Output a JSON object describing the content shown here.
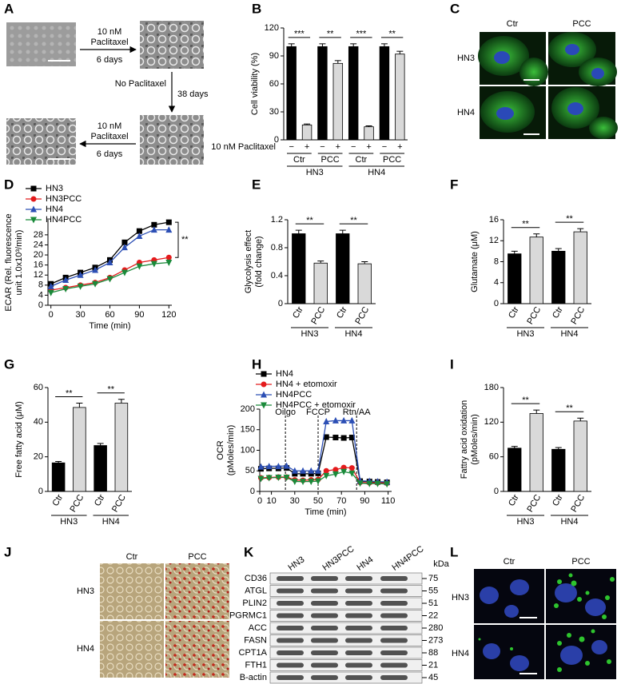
{
  "panel_letters": [
    "A",
    "B",
    "C",
    "D",
    "E",
    "F",
    "G",
    "H",
    "I",
    "J",
    "K",
    "L"
  ],
  "panel_a": {
    "top": [
      "10 nM",
      "Paclitaxel",
      "6 days"
    ],
    "middle": [
      "No Paclitaxel",
      "38 days"
    ],
    "bottom": [
      "10 nM",
      "Paclitaxel",
      "6 days"
    ]
  },
  "panel_c": {
    "columns": [
      "Ctr",
      "PCC"
    ],
    "rows": [
      "HN3",
      "HN4"
    ]
  },
  "panel_j": {
    "columns": [
      "Ctr",
      "PCC"
    ],
    "rows": [
      "HN3",
      "HN4"
    ]
  },
  "panel_l": {
    "columns": [
      "Ctr",
      "PCC"
    ],
    "rows": [
      "HN3",
      "HN4"
    ]
  },
  "panel_k": {
    "lanes": [
      "HN3",
      "HN3PCC",
      "HN4",
      "HN4PCC"
    ],
    "unit": "kDa",
    "proteins": [
      {
        "name": "CD36",
        "kda": 75
      },
      {
        "name": "ATGL",
        "kda": 55
      },
      {
        "name": "PLIN2",
        "kda": 51
      },
      {
        "name": "PGRMC1",
        "kda": 22
      },
      {
        "name": "ACC",
        "kda": 280
      },
      {
        "name": "FASN",
        "kda": 273
      },
      {
        "name": "CPT1A",
        "kda": 88
      },
      {
        "name": "FTH1",
        "kda": 21
      },
      {
        "name": "B-actin",
        "kda": 45
      }
    ]
  },
  "chart_data": [
    {
      "type": "bar",
      "ylabel": "Cell viability (%)",
      "row_label": "10 nM Paclitaxel",
      "categories": [
        "−",
        "+",
        "−",
        "+",
        "−",
        "+",
        "−",
        "+"
      ],
      "groups": [
        "Ctr",
        "PCC",
        "Ctr",
        "PCC"
      ],
      "supergroups": [
        "HN3",
        "HN4"
      ],
      "values": [
        100,
        16,
        100,
        82,
        100,
        14,
        100,
        92
      ],
      "errors": [
        3,
        1,
        3,
        3,
        3,
        1,
        3,
        3
      ],
      "colors": [
        "#000000",
        "#d9d9d9",
        "#000000",
        "#d9d9d9",
        "#000000",
        "#d9d9d9",
        "#000000",
        "#d9d9d9"
      ],
      "significance": [
        "***",
        "**",
        "***",
        "**"
      ],
      "ylim": [
        0,
        120
      ],
      "yticks": [
        0,
        30,
        60,
        90,
        120
      ]
    },
    {
      "type": "line",
      "ylabel": [
        "ECAR (Rel. fluorescence",
        "unit 1.0x10³/min)"
      ],
      "xlabel": "Time (min)",
      "x": [
        0,
        15,
        30,
        45,
        60,
        75,
        90,
        105,
        120
      ],
      "series": [
        {
          "name": "HN3",
          "color": "#000000",
          "marker": "square",
          "values": [
            8.5,
            11,
            13,
            15,
            18,
            25,
            29.5,
            32,
            33
          ]
        },
        {
          "name": "HN3PCC",
          "color": "#e41a1c",
          "marker": "circle",
          "values": [
            6,
            7,
            8,
            9,
            11,
            14,
            17,
            18,
            19
          ]
        },
        {
          "name": "HN4",
          "color": "#2c4fb5",
          "marker": "triangle",
          "values": [
            7.5,
            10,
            12,
            14,
            17,
            23,
            27.5,
            30,
            30
          ]
        },
        {
          "name": "HN4PCC",
          "color": "#1a8a3a",
          "marker": "triangle-down",
          "values": [
            5,
            6.5,
            7.5,
            8.5,
            10.5,
            13,
            15.5,
            16.5,
            17
          ]
        }
      ],
      "annotation": "**",
      "xlim": [
        -3,
        123
      ],
      "xticks": [
        0,
        30,
        60,
        90,
        120
      ],
      "ylim": [
        0,
        34
      ],
      "yticks": [
        0,
        4,
        8,
        12,
        16,
        20,
        24,
        28
      ]
    },
    {
      "type": "bar",
      "ylabel": [
        "Glycolysis effect",
        "(fold change)"
      ],
      "categories": [
        "Ctr",
        "PCC",
        "Ctr",
        "PCC"
      ],
      "groups": [
        "HN3",
        "HN4"
      ],
      "values": [
        1.0,
        0.58,
        1.0,
        0.57
      ],
      "errors": [
        0.05,
        0.03,
        0.05,
        0.03
      ],
      "colors": [
        "#000000",
        "#d9d9d9",
        "#000000",
        "#d9d9d9"
      ],
      "significance": [
        "**",
        "**"
      ],
      "ylim": [
        0,
        1.2
      ],
      "yticks": [
        0,
        0.4,
        0.8,
        1.2
      ]
    },
    {
      "type": "bar",
      "ylabel": "Glutamate (μM)",
      "categories": [
        "Ctr",
        "PCC",
        "Ctr",
        "PCC"
      ],
      "groups": [
        "HN3",
        "HN4"
      ],
      "values": [
        9.5,
        12.7,
        10,
        13.7
      ],
      "errors": [
        0.5,
        0.6,
        0.5,
        0.6
      ],
      "colors": [
        "#000000",
        "#d9d9d9",
        "#000000",
        "#d9d9d9"
      ],
      "significance": [
        "**",
        "**"
      ],
      "ylim": [
        0,
        16
      ],
      "yticks": [
        0,
        4,
        8,
        12,
        16
      ]
    },
    {
      "type": "bar",
      "ylabel": "Free fatty acid (μM)",
      "categories": [
        "Ctr",
        "PCC",
        "Ctr",
        "PCC"
      ],
      "groups": [
        "HN3",
        "HN4"
      ],
      "values": [
        16.5,
        48.5,
        26.5,
        51
      ],
      "errors": [
        0.8,
        2.5,
        1.2,
        2.2
      ],
      "colors": [
        "#000000",
        "#d9d9d9",
        "#000000",
        "#d9d9d9"
      ],
      "significance": [
        "**",
        "**"
      ],
      "ylim": [
        0,
        60
      ],
      "yticks": [
        0,
        20,
        40,
        60
      ]
    },
    {
      "type": "line",
      "ylabel": [
        "OCR",
        "(pMoles/min)"
      ],
      "xlabel": "Time (min)",
      "x": [
        1,
        8,
        16,
        23,
        30,
        37,
        44,
        50,
        57,
        65,
        72,
        79,
        86,
        94,
        101,
        109
      ],
      "series": [
        {
          "name": "HN4",
          "color": "#000000",
          "marker": "square",
          "values": [
            55,
            56,
            56,
            57,
            43,
            43,
            43,
            44,
            132,
            131,
            130,
            131,
            25,
            24,
            23,
            22
          ]
        },
        {
          "name": "HN4 + etomoxir",
          "color": "#e41a1c",
          "marker": "circle",
          "values": [
            33,
            34,
            35,
            35,
            28,
            27,
            28,
            29,
            50,
            53,
            58,
            57,
            22,
            21,
            21,
            20
          ]
        },
        {
          "name": "HN4PCC",
          "color": "#2c4fb5",
          "marker": "triangle",
          "values": [
            60,
            61,
            61,
            62,
            50,
            50,
            50,
            50,
            170,
            172,
            172,
            172,
            26,
            25,
            24,
            23
          ]
        },
        {
          "name": "HN4PCC + etomoxir",
          "color": "#1a8a3a",
          "marker": "triangle-down",
          "values": [
            31,
            33,
            34,
            34,
            24,
            24,
            24,
            25,
            38,
            42,
            48,
            44,
            20,
            19,
            19,
            18
          ]
        }
      ],
      "injections": [
        {
          "x": 22,
          "label": "Oilgo"
        },
        {
          "x": 50,
          "label": "FCCP"
        },
        {
          "x": 83,
          "label": "Rtn/AA"
        }
      ],
      "xlim": [
        0,
        113
      ],
      "xticks": [
        0,
        10,
        30,
        50,
        70,
        90,
        110
      ],
      "ylim": [
        0,
        200
      ],
      "yticks": [
        0,
        50,
        100,
        150,
        200
      ]
    },
    {
      "type": "bar",
      "ylabel": [
        "Fattry acid oxidation",
        "(pMoles/min)"
      ],
      "categories": [
        "Ctr",
        "PCC",
        "Ctr",
        "PCC"
      ],
      "groups": [
        "HN3",
        "HN4"
      ],
      "values": [
        75,
        135,
        73,
        122
      ],
      "errors": [
        3,
        6,
        3,
        5
      ],
      "colors": [
        "#000000",
        "#d9d9d9",
        "#000000",
        "#d9d9d9"
      ],
      "significance": [
        "**",
        "**"
      ],
      "ylim": [
        0,
        180
      ],
      "yticks": [
        0,
        60,
        120,
        180
      ]
    }
  ]
}
